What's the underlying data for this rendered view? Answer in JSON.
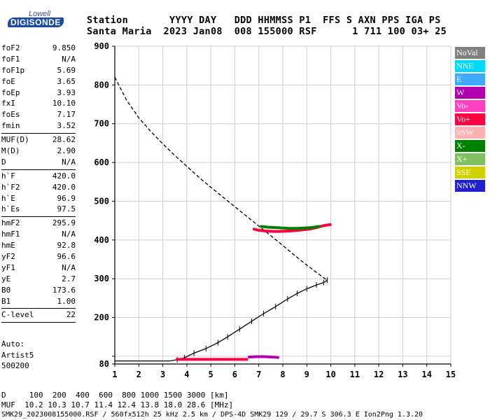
{
  "logo": {
    "top": "Lowell",
    "main": "DIGISONDE"
  },
  "header": {
    "row1": "Station       YYYY DAY   DDD HHMMSS P1  FFS S AXN PPS IGA PS",
    "row2": "Santa Maria  2023 Jan08  008 155000 RSF      1 711 100 03+ 25"
  },
  "params": [
    {
      "group": [
        {
          "name": "foF2",
          "value": "9.850"
        },
        {
          "name": "foF1",
          "value": "N/A"
        },
        {
          "name": "foF1p",
          "value": "5.69"
        },
        {
          "name": "foE",
          "value": "3.65"
        },
        {
          "name": "foEp",
          "value": "3.93"
        },
        {
          "name": "fxI",
          "value": "10.10"
        },
        {
          "name": "foEs",
          "value": "7.17"
        },
        {
          "name": "fmin",
          "value": "3.52"
        }
      ]
    },
    {
      "group": [
        {
          "name": "MUF(D)",
          "value": "28.62"
        },
        {
          "name": "M(D)",
          "value": "2.90"
        },
        {
          "name": "D",
          "value": "N/A"
        }
      ]
    },
    {
      "group": [
        {
          "name": "h`F",
          "value": "420.0"
        },
        {
          "name": "h`F2",
          "value": "420.0"
        },
        {
          "name": "h`E",
          "value": "96.9"
        },
        {
          "name": "h`Es",
          "value": "97.5"
        }
      ]
    },
    {
      "group": [
        {
          "name": "hmF2",
          "value": "295.9"
        },
        {
          "name": "hmF1",
          "value": "N/A"
        },
        {
          "name": "hmE",
          "value": "92.8"
        },
        {
          "name": "yF2",
          "value": "96.6"
        },
        {
          "name": "yF1",
          "value": "N/A"
        },
        {
          "name": "yE",
          "value": "2.7"
        },
        {
          "name": "B0",
          "value": "173.6"
        },
        {
          "name": "B1",
          "value": "1.00"
        }
      ]
    },
    {
      "group": [
        {
          "name": "C-level",
          "value": "22"
        }
      ]
    }
  ],
  "auto": {
    "line1": "Auto:",
    "line2": "Artist5",
    "line3": "500200"
  },
  "legend": [
    {
      "label": "NoVal",
      "color": "#808080"
    },
    {
      "label": "NNE",
      "color": "#00d8ff"
    },
    {
      "label": "E",
      "color": "#40a8ff"
    },
    {
      "label": "W",
      "color": "#b000b0"
    },
    {
      "label": "Vo-",
      "color": "#ff40c0"
    },
    {
      "label": "Vo+",
      "color": "#ff0040"
    },
    {
      "label": "SSW",
      "color": "#ffb0b0"
    },
    {
      "label": "X-",
      "color": "#008000"
    },
    {
      "label": "X+",
      "color": "#80c060"
    },
    {
      "label": "SSE",
      "color": "#d0d000"
    },
    {
      "label": "NNW",
      "color": "#2020d0"
    }
  ],
  "footer": {
    "row1": "D     100  200  400  600  800 1000 1500 3000 [km]",
    "row2": "MUF  10.2 10.3 10.7 11.4 12.4 13.8 18.0 28.6 [MHz]",
    "row3": "SMK29_2023008155000.RSF / 560fx512h 25 kHz 2.5 km / DPS-4D SMK29 129 / 29.7 S 306.3 E Ion2Png 1.3.20"
  },
  "chart_data": {
    "type": "scatter",
    "xlim": [
      1,
      15
    ],
    "ylim": [
      80,
      900
    ],
    "x_ticks": [
      1,
      2,
      3,
      4,
      5,
      6,
      7,
      8,
      9,
      10,
      11,
      12,
      13,
      14,
      15
    ],
    "y_ticks": [
      80,
      100,
      200,
      300,
      400,
      500,
      600,
      700,
      800,
      900
    ],
    "y_tick_labels": [
      "80",
      "",
      "200",
      "300",
      "400",
      "500",
      "600",
      "700",
      "800",
      "900"
    ],
    "grid": true,
    "series": [
      {
        "kind": "profile",
        "style": "dashed",
        "points": [
          [
            1.0,
            820
          ],
          [
            1.5,
            760
          ],
          [
            2.0,
            715
          ],
          [
            2.5,
            680
          ],
          [
            3.0,
            648
          ],
          [
            3.5,
            618
          ],
          [
            4.0,
            590
          ],
          [
            4.5,
            562
          ],
          [
            5.0,
            536
          ],
          [
            5.5,
            511
          ],
          [
            6.0,
            486
          ],
          [
            6.5,
            461
          ],
          [
            7.0,
            436
          ],
          [
            7.5,
            411
          ],
          [
            8.0,
            386
          ],
          [
            8.5,
            360
          ],
          [
            9.0,
            335
          ],
          [
            9.5,
            312
          ],
          [
            9.85,
            296
          ]
        ]
      },
      {
        "kind": "profile",
        "style": "solid",
        "points": [
          [
            1.0,
            88
          ],
          [
            2.0,
            88
          ],
          [
            3.3,
            88
          ],
          [
            3.6,
            91
          ],
          [
            3.9,
            96
          ],
          [
            4.3,
            108
          ],
          [
            4.8,
            120
          ],
          [
            5.3,
            135
          ],
          [
            5.7,
            150
          ],
          [
            6.2,
            170
          ],
          [
            6.7,
            190
          ],
          [
            7.2,
            210
          ],
          [
            7.7,
            228
          ],
          [
            8.2,
            248
          ],
          [
            8.6,
            262
          ],
          [
            9.0,
            274
          ],
          [
            9.4,
            284
          ],
          [
            9.7,
            290
          ],
          [
            9.85,
            296
          ],
          [
            9.85,
            300
          ]
        ]
      },
      {
        "kind": "trace",
        "color": "#ff0040",
        "points": [
          [
            6.8,
            428
          ],
          [
            7.0,
            425
          ],
          [
            7.3,
            423
          ],
          [
            7.6,
            422
          ],
          [
            7.9,
            422
          ],
          [
            8.2,
            423
          ],
          [
            8.5,
            424
          ],
          [
            8.8,
            426
          ],
          [
            9.1,
            428
          ],
          [
            9.4,
            432
          ],
          [
            9.7,
            437
          ],
          [
            10.0,
            440
          ]
        ]
      },
      {
        "kind": "trace",
        "color": "#008000",
        "points": [
          [
            7.1,
            435
          ],
          [
            7.4,
            433
          ],
          [
            7.7,
            432
          ],
          [
            8.0,
            431
          ],
          [
            8.3,
            430
          ],
          [
            8.6,
            430
          ],
          [
            8.9,
            431
          ],
          [
            9.2,
            432
          ],
          [
            9.5,
            435
          ]
        ]
      },
      {
        "kind": "trace",
        "color": "#ff0040",
        "points": [
          [
            3.6,
            92
          ],
          [
            4.0,
            92
          ],
          [
            4.5,
            92
          ],
          [
            5.0,
            92
          ],
          [
            5.5,
            92
          ],
          [
            6.0,
            92
          ],
          [
            6.5,
            92
          ]
        ]
      },
      {
        "kind": "trace",
        "color": "#b000b0",
        "points": [
          [
            6.6,
            98
          ],
          [
            6.9,
            99
          ],
          [
            7.2,
            99
          ],
          [
            7.5,
            98
          ],
          [
            7.8,
            97
          ]
        ]
      }
    ]
  }
}
